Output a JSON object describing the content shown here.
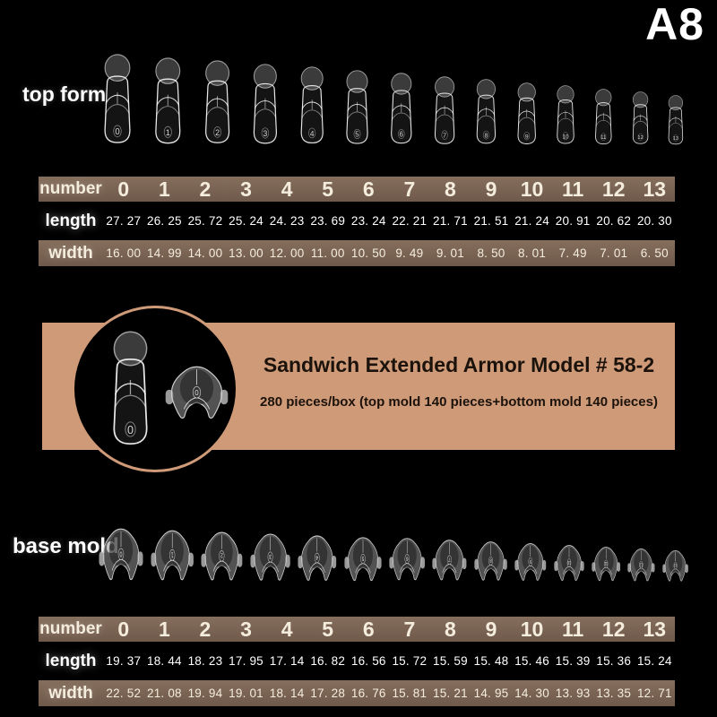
{
  "colors": {
    "background": "#000000",
    "band_top": "#856e5c",
    "band_bottom": "#6f594a",
    "banner": "#cf9a78",
    "banner_text": "#1b120b",
    "table_text": "#f4edde"
  },
  "header": {
    "model_code": "A8"
  },
  "top_form": {
    "label": "top form",
    "numbers": [
      "0",
      "1",
      "2",
      "3",
      "4",
      "5",
      "6",
      "7",
      "8",
      "9",
      "10",
      "11",
      "12",
      "13"
    ]
  },
  "top_table": {
    "rows": [
      {
        "label": "number",
        "values": [
          "0",
          "1",
          "2",
          "3",
          "4",
          "5",
          "6",
          "7",
          "8",
          "9",
          "10",
          "11",
          "12",
          "13"
        ]
      },
      {
        "label": "length",
        "values": [
          "27. 27",
          "26. 25",
          "25. 72",
          "25. 24",
          "24. 23",
          "23. 69",
          "23. 24",
          "22. 21",
          "21. 71",
          "21. 51",
          "21. 24",
          "20. 91",
          "20. 62",
          "20. 30"
        ]
      },
      {
        "label": "width",
        "values": [
          "16. 00",
          "14. 99",
          "14. 00",
          "13. 00",
          "12. 00",
          "11. 00",
          "10. 50",
          "9. 49",
          "9. 01",
          "8. 50",
          "8. 01",
          "7. 49",
          "7. 01",
          "6. 50"
        ]
      }
    ]
  },
  "banner": {
    "title": "Sandwich Extended Armor Model # 58-2",
    "subtitle": "280 pieces/box (top mold 140 pieces+bottom mold 140 pieces)",
    "tip_number": "0",
    "mold_number": "0"
  },
  "base_mold": {
    "label": "base mold",
    "numbers": [
      "0",
      "1",
      "2",
      "3",
      "4",
      "5",
      "6",
      "7",
      "8",
      "9",
      "10",
      "11",
      "12",
      "13"
    ]
  },
  "bottom_table": {
    "rows": [
      {
        "label": "number",
        "values": [
          "0",
          "1",
          "2",
          "3",
          "4",
          "5",
          "6",
          "7",
          "8",
          "9",
          "10",
          "11",
          "12",
          "13"
        ]
      },
      {
        "label": "length",
        "values": [
          "19. 37",
          "18. 44",
          "18. 23",
          "17. 95",
          "17. 14",
          "16. 82",
          "16. 56",
          "15. 72",
          "15. 59",
          "15. 48",
          "15. 46",
          "15. 39",
          "15. 36",
          "15. 24"
        ]
      },
      {
        "label": "width",
        "values": [
          "22. 52",
          "21. 08",
          "19. 94",
          "19. 01",
          "18. 14",
          "17. 28",
          "16. 76",
          "15. 81",
          "15. 21",
          "14. 95",
          "14. 30",
          "13. 93",
          "13. 35",
          "12. 71"
        ]
      }
    ]
  }
}
